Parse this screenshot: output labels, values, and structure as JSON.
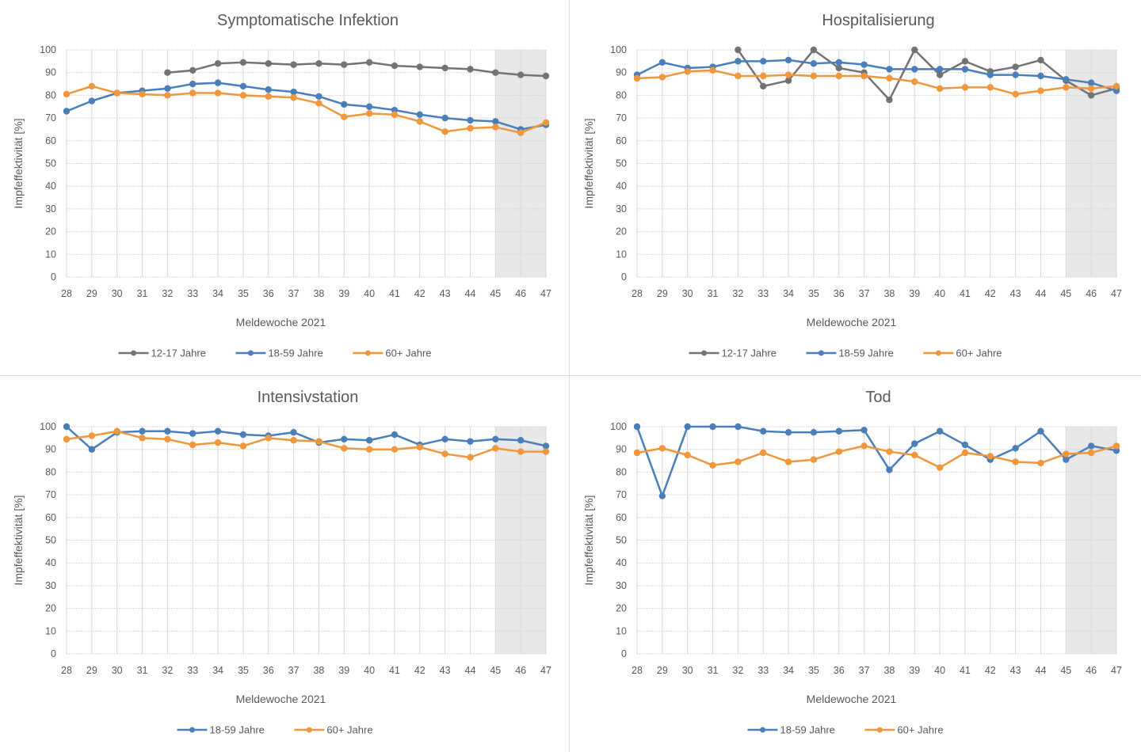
{
  "colors": {
    "12-17 Jahre": "#737373",
    "18-59 Jahre": "#4a7ebb",
    "60+ Jahre": "#f0963c",
    "shade": "#e8e8e8",
    "grid": "#d9d9d9"
  },
  "chart_data": [
    {
      "type": "line",
      "title": "Symptomatische Infektion",
      "xlabel": "Meldewoche 2021",
      "ylabel": "Impfeffektivität [%]",
      "x": [
        28,
        29,
        30,
        31,
        32,
        33,
        34,
        35,
        36,
        37,
        38,
        39,
        40,
        41,
        42,
        43,
        44,
        45,
        46,
        47
      ],
      "ylim": [
        0,
        100
      ],
      "yticks": [
        0,
        10,
        20,
        30,
        40,
        50,
        60,
        70,
        80,
        90,
        100
      ],
      "grid": true,
      "shaded_weeks": [
        45,
        47
      ],
      "legend_position": "bottom",
      "series": [
        {
          "name": "12-17 Jahre",
          "values": [
            null,
            null,
            null,
            null,
            90,
            91,
            94,
            94.5,
            94,
            93.5,
            94,
            93.5,
            94.5,
            93,
            92.5,
            92,
            91.5,
            90,
            89,
            88.5
          ]
        },
        {
          "name": "18-59 Jahre",
          "values": [
            73,
            77.5,
            81,
            82,
            83,
            85,
            85.5,
            84,
            82.5,
            81.5,
            79.5,
            76,
            75,
            73.5,
            71.5,
            70,
            69,
            68.5,
            65,
            67
          ]
        },
        {
          "name": "60+ Jahre",
          "values": [
            80.5,
            84,
            81,
            80.5,
            80,
            81,
            81,
            80,
            79.5,
            79,
            76.5,
            70.5,
            72,
            71.5,
            68.5,
            64,
            65.5,
            66,
            63.5,
            68
          ]
        }
      ]
    },
    {
      "type": "line",
      "title": "Hospitalisierung",
      "xlabel": "Meldewoche 2021",
      "ylabel": "Impfeffektivität [%]",
      "x": [
        28,
        29,
        30,
        31,
        32,
        33,
        34,
        35,
        36,
        37,
        38,
        39,
        40,
        41,
        42,
        43,
        44,
        45,
        46,
        47
      ],
      "ylim": [
        0,
        100
      ],
      "yticks": [
        0,
        10,
        20,
        30,
        40,
        50,
        60,
        70,
        80,
        90,
        100
      ],
      "grid": true,
      "shaded_weeks": [
        45,
        47
      ],
      "legend_position": "bottom",
      "series": [
        {
          "name": "12-17 Jahre",
          "values": [
            null,
            null,
            null,
            null,
            100,
            84,
            86.5,
            100,
            92,
            90,
            78,
            100,
            89,
            95,
            90.5,
            92.5,
            95.5,
            86.5,
            80,
            83
          ]
        },
        {
          "name": "18-59 Jahre",
          "values": [
            89,
            94.5,
            92,
            92.5,
            95,
            95,
            95.5,
            94,
            94.5,
            93.5,
            91.5,
            91.5,
            91.5,
            91.5,
            89,
            89,
            88.5,
            87,
            85.5,
            82
          ]
        },
        {
          "name": "60+ Jahre",
          "values": [
            87.5,
            88,
            90.5,
            91,
            88.5,
            88.5,
            89,
            88.5,
            88.5,
            88.5,
            87.5,
            86,
            83,
            83.5,
            83.5,
            80.5,
            82,
            83.5,
            83,
            84
          ]
        }
      ]
    },
    {
      "type": "line",
      "title": "Intensivstation",
      "xlabel": "Meldewoche 2021",
      "ylabel": "Impfeffektivität [%]",
      "x": [
        28,
        29,
        30,
        31,
        32,
        33,
        34,
        35,
        36,
        37,
        38,
        39,
        40,
        41,
        42,
        43,
        44,
        45,
        46,
        47
      ],
      "ylim": [
        0,
        100
      ],
      "yticks": [
        0,
        10,
        20,
        30,
        40,
        50,
        60,
        70,
        80,
        90,
        100
      ],
      "grid": true,
      "shaded_weeks": [
        45,
        47
      ],
      "legend_position": "bottom",
      "series": [
        {
          "name": "18-59 Jahre",
          "values": [
            100,
            90,
            97.5,
            98,
            98,
            97,
            98,
            96.5,
            96,
            97.5,
            93,
            94.5,
            94,
            96.5,
            92,
            94.5,
            93.5,
            94.5,
            94,
            91.5
          ]
        },
        {
          "name": "60+ Jahre",
          "values": [
            94.5,
            96,
            98,
            95,
            94.5,
            92,
            93,
            91.5,
            95,
            94,
            93.5,
            90.5,
            90,
            90,
            91,
            88,
            86.5,
            90.5,
            89,
            89
          ]
        }
      ]
    },
    {
      "type": "line",
      "title": "Tod",
      "xlabel": "Meldewoche 2021",
      "ylabel": "Impfeffektivität [%]",
      "x": [
        28,
        29,
        30,
        31,
        32,
        33,
        34,
        35,
        36,
        37,
        38,
        39,
        40,
        41,
        42,
        43,
        44,
        45,
        46,
        47
      ],
      "ylim": [
        0,
        100
      ],
      "yticks": [
        0,
        10,
        20,
        30,
        40,
        50,
        60,
        70,
        80,
        90,
        100
      ],
      "grid": true,
      "shaded_weeks": [
        45,
        47
      ],
      "legend_position": "bottom",
      "series": [
        {
          "name": "18-59 Jahre",
          "values": [
            100,
            69.5,
            100,
            100,
            100,
            98,
            97.5,
            97.5,
            98,
            98.5,
            81,
            92.5,
            98,
            92,
            85.5,
            90.5,
            98,
            85.5,
            91.5,
            89.5
          ]
        },
        {
          "name": "60+ Jahre",
          "values": [
            88.5,
            90.5,
            87.5,
            83,
            84.5,
            88.5,
            84.5,
            85.5,
            89,
            91.5,
            89,
            87.5,
            82,
            88.5,
            87,
            84.5,
            84,
            88,
            88.5,
            91.5
          ]
        }
      ]
    }
  ]
}
